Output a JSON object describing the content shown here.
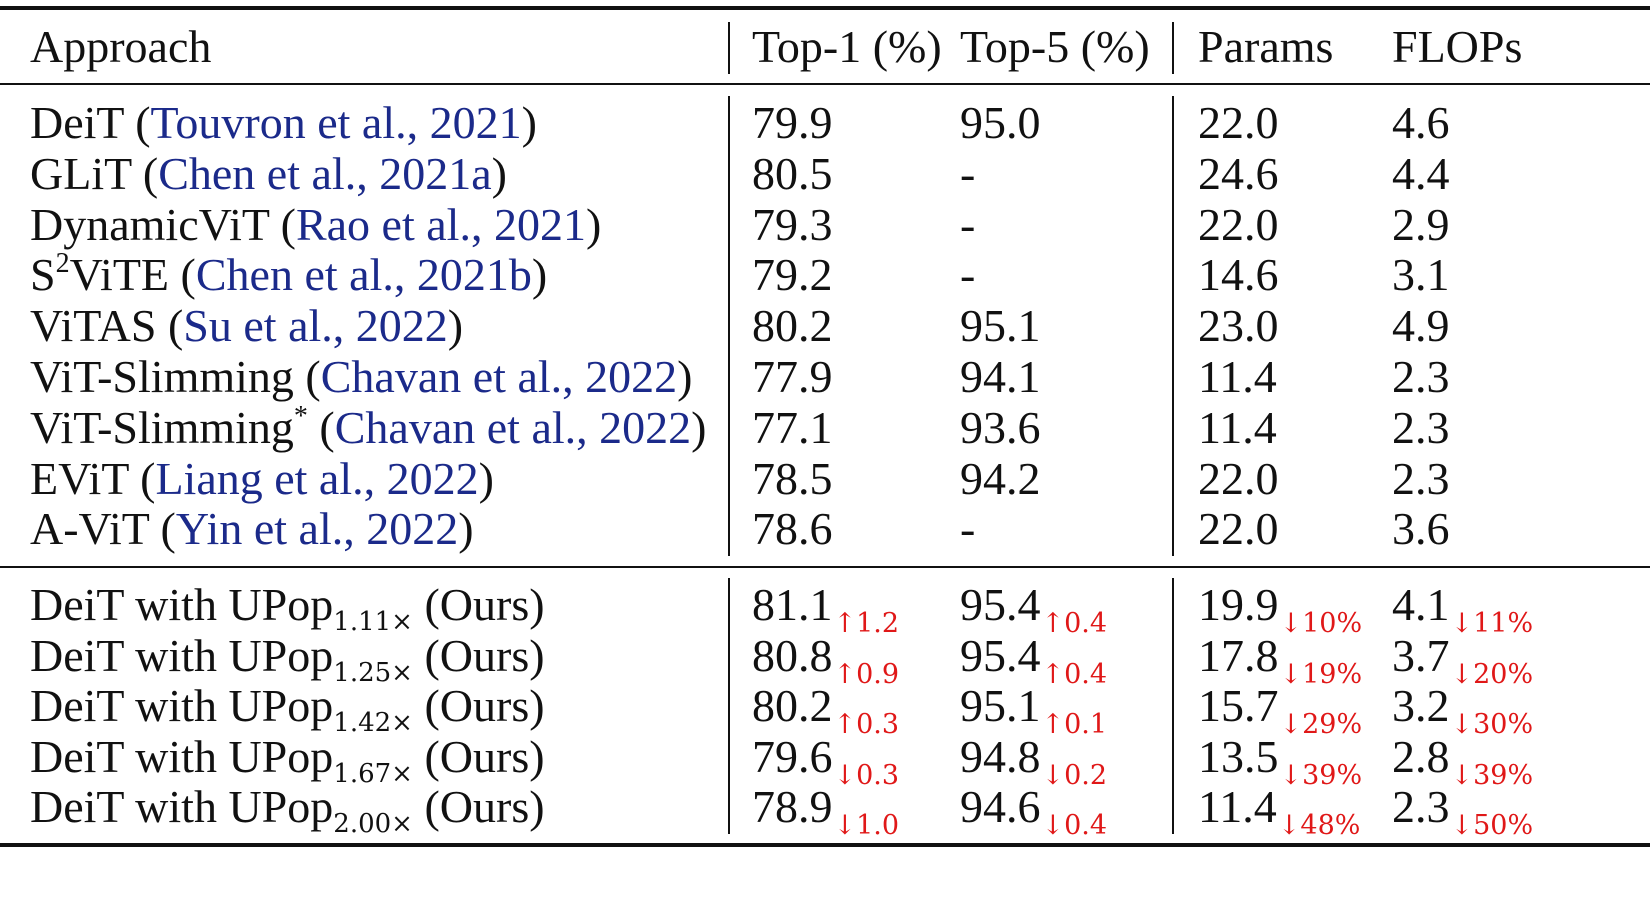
{
  "header": {
    "approach": "Approach",
    "top1": "Top-1 (%)",
    "top5": "Top-5 (%)",
    "params": "Params",
    "flops": "FLOPs"
  },
  "baselines": [
    {
      "name": "DeiT",
      "sup": "",
      "pre": "",
      "cite": "Touvron et al., 2021",
      "top1": "79.9",
      "top5": "95.0",
      "params": "22.0",
      "flops": "4.6"
    },
    {
      "name": "GLiT",
      "sup": "",
      "pre": "",
      "cite": "Chen et al., 2021a",
      "top1": "80.5",
      "top5": "-",
      "params": "24.6",
      "flops": "4.4"
    },
    {
      "name": "DynamicViT",
      "sup": "",
      "pre": "",
      "cite": "Rao et al., 2021",
      "top1": "79.3",
      "top5": "-",
      "params": "22.0",
      "flops": "2.9"
    },
    {
      "name": "ViTE",
      "sup": "2",
      "pre": "S",
      "cite": "Chen et al., 2021b",
      "top1": "79.2",
      "top5": "-",
      "params": "14.6",
      "flops": "3.1"
    },
    {
      "name": "ViTAS",
      "sup": "",
      "pre": "",
      "cite": "Su et al., 2022",
      "top1": "80.2",
      "top5": "95.1",
      "params": "23.0",
      "flops": "4.9"
    },
    {
      "name": "ViT-Slimming",
      "sup": "",
      "pre": "",
      "cite": "Chavan et al., 2022",
      "top1": "77.9",
      "top5": "94.1",
      "params": "11.4",
      "flops": "2.3"
    },
    {
      "name": "ViT-Slimming",
      "sup": "*",
      "pre": "",
      "cite": "Chavan et al., 2022",
      "top1": "77.1",
      "top5": "93.6",
      "params": "11.4",
      "flops": "2.3"
    },
    {
      "name": "EViT",
      "sup": "",
      "pre": "",
      "cite": "Liang et al., 2022",
      "top1": "78.5",
      "top5": "94.2",
      "params": "22.0",
      "flops": "2.3"
    },
    {
      "name": "A-ViT",
      "sup": "",
      "pre": "",
      "cite": "Yin et al., 2022",
      "top1": "78.6",
      "top5": "-",
      "params": "22.0",
      "flops": "3.6"
    }
  ],
  "ours": [
    {
      "prefix": "DeiT with UPop",
      "sub": "1.11×",
      "suffix": "(Ours)",
      "top1": "81.1",
      "top1_d": "↑1.2",
      "top5": "95.4",
      "top5_d": "↑0.4",
      "params": "19.9",
      "params_d": "↓10%",
      "flops": "4.1",
      "flops_d": "↓11%"
    },
    {
      "prefix": "DeiT with UPop",
      "sub": "1.25×",
      "suffix": "(Ours)",
      "top1": "80.8",
      "top1_d": "↑0.9",
      "top5": "95.4",
      "top5_d": "↑0.4",
      "params": "17.8",
      "params_d": "↓19%",
      "flops": "3.7",
      "flops_d": "↓20%"
    },
    {
      "prefix": "DeiT with UPop",
      "sub": "1.42×",
      "suffix": "(Ours)",
      "top1": "80.2",
      "top1_d": "↑0.3",
      "top5": "95.1",
      "top5_d": "↑0.1",
      "params": "15.7",
      "params_d": "↓29%",
      "flops": "3.2",
      "flops_d": "↓30%"
    },
    {
      "prefix": "DeiT with UPop",
      "sub": "1.67×",
      "suffix": "(Ours)",
      "top1": "79.6",
      "top1_d": "↓0.3",
      "top5": "94.8",
      "top5_d": "↓0.2",
      "params": "13.5",
      "params_d": "↓39%",
      "flops": "2.8",
      "flops_d": "↓39%"
    },
    {
      "prefix": "DeiT with UPop",
      "sub": "2.00×",
      "suffix": "(Ours)",
      "top1": "78.9",
      "top1_d": "↓1.0",
      "top5": "94.6",
      "top5_d": "↓0.4",
      "params": "11.4",
      "params_d": "↓48%",
      "flops": "2.3",
      "flops_d": "↓50%"
    }
  ],
  "colors": {
    "citation": "#1b2a8a",
    "delta": "#e01818",
    "text": "#111111"
  }
}
